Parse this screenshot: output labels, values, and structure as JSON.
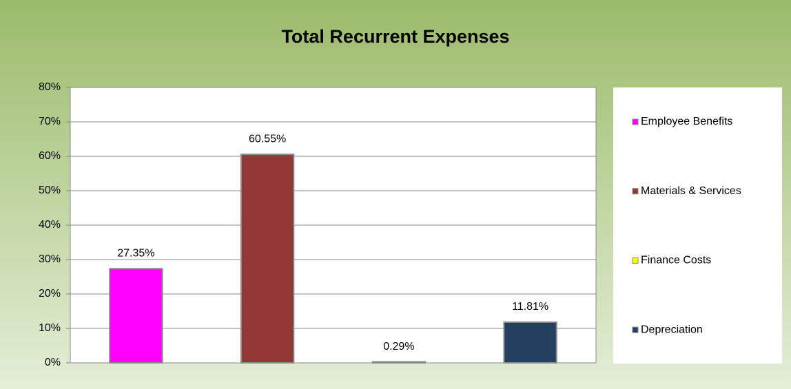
{
  "chart_data": {
    "type": "bar",
    "title": "Total Recurrent Expenses",
    "categories": [
      null
    ],
    "series": [
      {
        "name": "Employee Benefits",
        "color": "#ff00ff",
        "values": [
          27.35
        ],
        "value_labels": [
          "27.35%"
        ]
      },
      {
        "name": "Materials & Services",
        "color": "#953735",
        "values": [
          60.55
        ],
        "value_labels": [
          "60.55%"
        ]
      },
      {
        "name": "Finance Costs",
        "color": "#ffff00",
        "values": [
          0.29
        ],
        "value_labels": [
          "0.29%"
        ]
      },
      {
        "name": "Depreciation",
        "color": "#243f60",
        "values": [
          11.81
        ],
        "value_labels": [
          "11.81%"
        ]
      }
    ],
    "ylim": [
      0,
      80
    ],
    "yticks": [
      {
        "value": 0,
        "label": "0%"
      },
      {
        "value": 10,
        "label": "10%"
      },
      {
        "value": 20,
        "label": "20%"
      },
      {
        "value": 30,
        "label": "30%"
      },
      {
        "value": 40,
        "label": "40%"
      },
      {
        "value": 50,
        "label": "50%"
      },
      {
        "value": 60,
        "label": "60%"
      },
      {
        "value": 70,
        "label": "70%"
      },
      {
        "value": 80,
        "label": "80%"
      }
    ],
    "grid": true,
    "legend": "right"
  }
}
